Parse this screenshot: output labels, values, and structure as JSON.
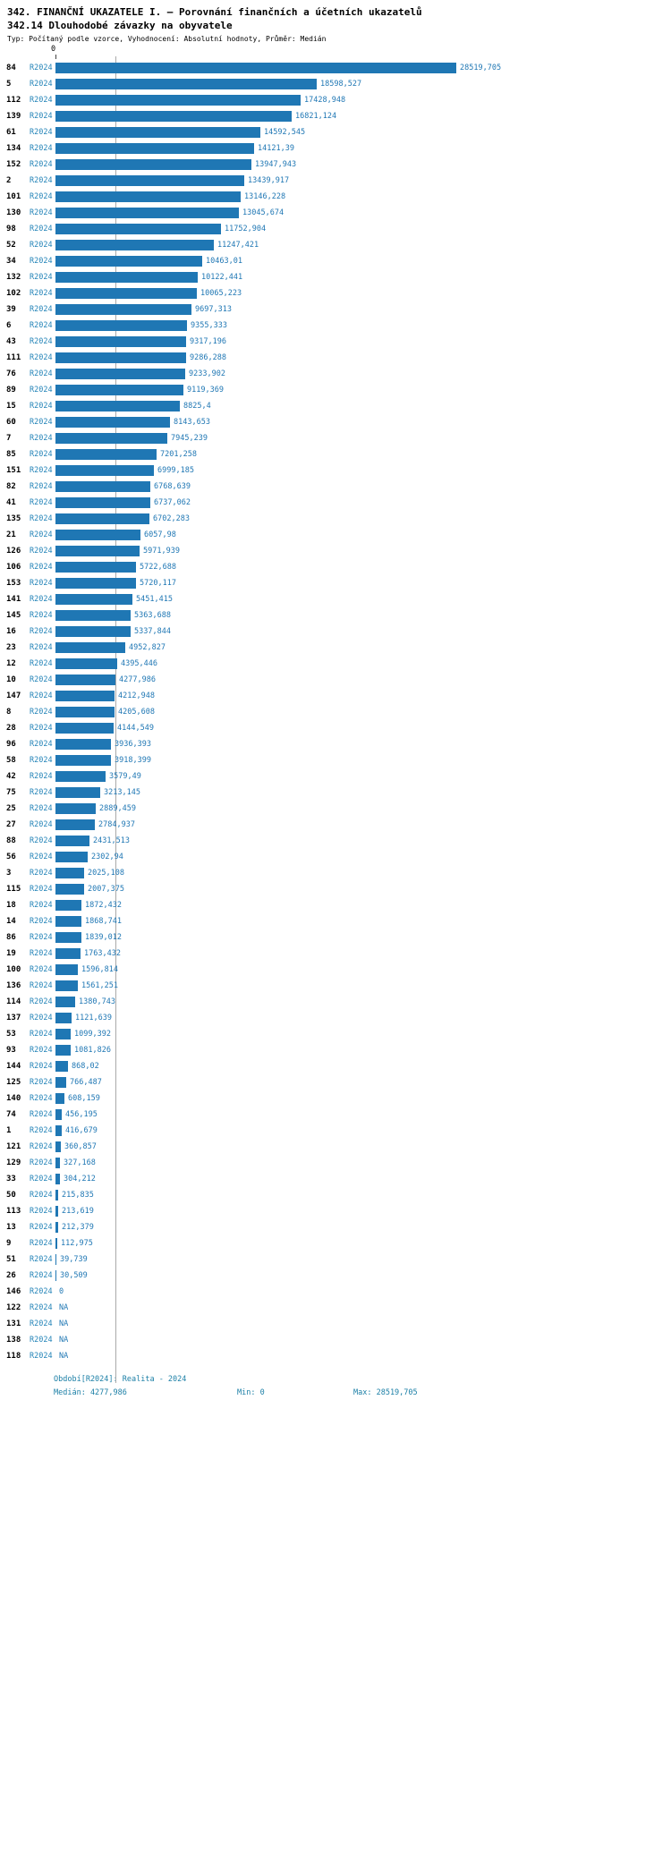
{
  "header": {
    "title": "342. FINANČNÍ UKAZATELE I. — Porovnání finančních a účetních ukazatelů",
    "subtitle": "342.14 Dlouhodobé závazky na obyvatele",
    "meta": "Typ: Počítaný podle vzorce, Vyhodnocení: Absolutní hodnoty, Průměr: Medián"
  },
  "axis": {
    "zero_label": "0"
  },
  "chart_data": {
    "type": "bar",
    "orientation": "horizontal",
    "title": "342.14 Dlouhodobé závazky na obyvatele",
    "xlabel": "",
    "ylabel": "",
    "xlim": [
      0,
      28519.705
    ],
    "median": 4277.986,
    "min": 0,
    "max": 28519.705,
    "series_label": "R2024",
    "legend": "none",
    "grid": "median-line-only",
    "rows": [
      {
        "id": "84",
        "value": 28519.705,
        "label": "28519,705"
      },
      {
        "id": "5",
        "value": 18598.527,
        "label": "18598,527"
      },
      {
        "id": "112",
        "value": 17428.948,
        "label": "17428,948"
      },
      {
        "id": "139",
        "value": 16821.124,
        "label": "16821,124"
      },
      {
        "id": "61",
        "value": 14592.545,
        "label": "14592,545"
      },
      {
        "id": "134",
        "value": 14121.39,
        "label": "14121,39"
      },
      {
        "id": "152",
        "value": 13947.943,
        "label": "13947,943"
      },
      {
        "id": "2",
        "value": 13439.917,
        "label": "13439,917"
      },
      {
        "id": "101",
        "value": 13146.228,
        "label": "13146,228"
      },
      {
        "id": "130",
        "value": 13045.674,
        "label": "13045,674"
      },
      {
        "id": "98",
        "value": 11752.904,
        "label": "11752,904"
      },
      {
        "id": "52",
        "value": 11247.421,
        "label": "11247,421"
      },
      {
        "id": "34",
        "value": 10463.01,
        "label": "10463,01"
      },
      {
        "id": "132",
        "value": 10122.441,
        "label": "10122,441"
      },
      {
        "id": "102",
        "value": 10065.223,
        "label": "10065,223"
      },
      {
        "id": "39",
        "value": 9697.313,
        "label": "9697,313"
      },
      {
        "id": "6",
        "value": 9355.333,
        "label": "9355,333"
      },
      {
        "id": "43",
        "value": 9317.196,
        "label": "9317,196"
      },
      {
        "id": "111",
        "value": 9286.288,
        "label": "9286,288"
      },
      {
        "id": "76",
        "value": 9233.902,
        "label": "9233,902"
      },
      {
        "id": "89",
        "value": 9119.369,
        "label": "9119,369"
      },
      {
        "id": "15",
        "value": 8825.4,
        "label": "8825,4"
      },
      {
        "id": "60",
        "value": 8143.653,
        "label": "8143,653"
      },
      {
        "id": "7",
        "value": 7945.239,
        "label": "7945,239"
      },
      {
        "id": "85",
        "value": 7201.258,
        "label": "7201,258"
      },
      {
        "id": "151",
        "value": 6999.185,
        "label": "6999,185"
      },
      {
        "id": "82",
        "value": 6768.639,
        "label": "6768,639"
      },
      {
        "id": "41",
        "value": 6737.062,
        "label": "6737,062"
      },
      {
        "id": "135",
        "value": 6702.283,
        "label": "6702,283"
      },
      {
        "id": "21",
        "value": 6057.98,
        "label": "6057,98"
      },
      {
        "id": "126",
        "value": 5971.939,
        "label": "5971,939"
      },
      {
        "id": "106",
        "value": 5722.688,
        "label": "5722,688"
      },
      {
        "id": "153",
        "value": 5720.117,
        "label": "5720,117"
      },
      {
        "id": "141",
        "value": 5451.415,
        "label": "5451,415"
      },
      {
        "id": "145",
        "value": 5363.688,
        "label": "5363,688"
      },
      {
        "id": "16",
        "value": 5337.844,
        "label": "5337,844"
      },
      {
        "id": "23",
        "value": 4952.827,
        "label": "4952,827"
      },
      {
        "id": "12",
        "value": 4395.446,
        "label": "4395,446"
      },
      {
        "id": "10",
        "value": 4277.986,
        "label": "4277,986"
      },
      {
        "id": "147",
        "value": 4212.948,
        "label": "4212,948"
      },
      {
        "id": "8",
        "value": 4205.608,
        "label": "4205,608"
      },
      {
        "id": "28",
        "value": 4144.549,
        "label": "4144,549"
      },
      {
        "id": "96",
        "value": 3936.393,
        "label": "3936,393"
      },
      {
        "id": "58",
        "value": 3918.399,
        "label": "3918,399"
      },
      {
        "id": "42",
        "value": 3579.49,
        "label": "3579,49"
      },
      {
        "id": "75",
        "value": 3213.145,
        "label": "3213,145"
      },
      {
        "id": "25",
        "value": 2889.459,
        "label": "2889,459"
      },
      {
        "id": "27",
        "value": 2784.937,
        "label": "2784,937"
      },
      {
        "id": "88",
        "value": 2431.513,
        "label": "2431,513"
      },
      {
        "id": "56",
        "value": 2302.94,
        "label": "2302,94"
      },
      {
        "id": "3",
        "value": 2025.108,
        "label": "2025,108"
      },
      {
        "id": "115",
        "value": 2007.375,
        "label": "2007,375"
      },
      {
        "id": "18",
        "value": 1872.432,
        "label": "1872,432"
      },
      {
        "id": "14",
        "value": 1868.741,
        "label": "1868,741"
      },
      {
        "id": "86",
        "value": 1839.012,
        "label": "1839,012"
      },
      {
        "id": "19",
        "value": 1763.432,
        "label": "1763,432"
      },
      {
        "id": "100",
        "value": 1596.814,
        "label": "1596,814"
      },
      {
        "id": "136",
        "value": 1561.251,
        "label": "1561,251"
      },
      {
        "id": "114",
        "value": 1380.743,
        "label": "1380,743"
      },
      {
        "id": "137",
        "value": 1121.639,
        "label": "1121,639"
      },
      {
        "id": "53",
        "value": 1099.392,
        "label": "1099,392"
      },
      {
        "id": "93",
        "value": 1081.826,
        "label": "1081,826"
      },
      {
        "id": "144",
        "value": 868.02,
        "label": "868,02"
      },
      {
        "id": "125",
        "value": 766.487,
        "label": "766,487"
      },
      {
        "id": "140",
        "value": 608.159,
        "label": "608,159"
      },
      {
        "id": "74",
        "value": 456.195,
        "label": "456,195"
      },
      {
        "id": "1",
        "value": 416.679,
        "label": "416,679"
      },
      {
        "id": "121",
        "value": 360.857,
        "label": "360,857"
      },
      {
        "id": "129",
        "value": 327.168,
        "label": "327,168"
      },
      {
        "id": "33",
        "value": 304.212,
        "label": "304,212"
      },
      {
        "id": "50",
        "value": 215.835,
        "label": "215,835"
      },
      {
        "id": "113",
        "value": 213.619,
        "label": "213,619"
      },
      {
        "id": "13",
        "value": 212.379,
        "label": "212,379"
      },
      {
        "id": "9",
        "value": 112.975,
        "label": "112,975"
      },
      {
        "id": "51",
        "value": 39.739,
        "label": "39,739"
      },
      {
        "id": "26",
        "value": 30.509,
        "label": "30,509"
      },
      {
        "id": "146",
        "value": 0,
        "label": "0"
      },
      {
        "id": "122",
        "value": null,
        "label": "NA"
      },
      {
        "id": "131",
        "value": null,
        "label": "NA"
      },
      {
        "id": "138",
        "value": null,
        "label": "NA"
      },
      {
        "id": "118",
        "value": null,
        "label": "NA"
      }
    ]
  },
  "footer": {
    "period": "Období[R2024]: Realita - 2024",
    "median": "Medián: 4277,986",
    "min": "Min: 0",
    "max": "Max: 28519,705"
  },
  "colors": {
    "bar": "#1f77b4",
    "value_text": "#1f77b4",
    "series_text": "#2484b8",
    "footer_text": "#1b7fa6",
    "median_line": "#aaaaaa"
  }
}
